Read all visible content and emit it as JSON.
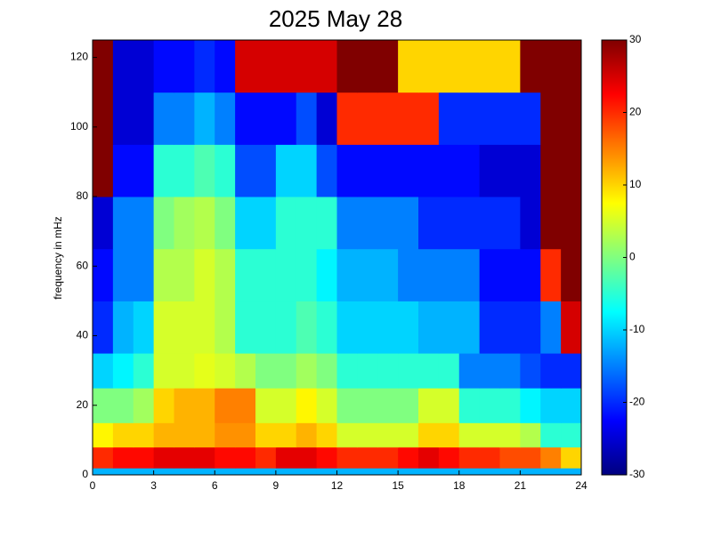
{
  "chart_data": {
    "type": "heatmap",
    "title": "2025 May 28",
    "ylabel": "frequency in mHz",
    "colormap": "jet",
    "x_edges": [
      0,
      1,
      2,
      3,
      4,
      5,
      6,
      7,
      8,
      9,
      10,
      11,
      12,
      13,
      14,
      15,
      16,
      17,
      18,
      19,
      20,
      21,
      22,
      23,
      24
    ],
    "y_edges": [
      0,
      2,
      8,
      15,
      25,
      35,
      50,
      65,
      80,
      95,
      110,
      125
    ],
    "values": [
      [
        -12,
        -12,
        -12,
        -12,
        -12,
        -12,
        -12,
        -12,
        -12,
        -12,
        -12,
        -12,
        -12,
        -12,
        -12,
        -12,
        -12,
        -12,
        -12,
        -12,
        -12,
        -12,
        -12,
        -12
      ],
      [
        20,
        22,
        22,
        24,
        24,
        24,
        22,
        22,
        20,
        24,
        24,
        22,
        20,
        20,
        20,
        22,
        24,
        22,
        20,
        20,
        18,
        18,
        15,
        10
      ],
      [
        8,
        10,
        10,
        12,
        12,
        12,
        14,
        14,
        10,
        10,
        12,
        10,
        5,
        5,
        5,
        5,
        10,
        10,
        5,
        5,
        5,
        3,
        -5,
        -5
      ],
      [
        0,
        0,
        2,
        10,
        12,
        12,
        15,
        15,
        5,
        5,
        8,
        5,
        0,
        0,
        0,
        0,
        5,
        5,
        -5,
        -5,
        -5,
        -8,
        -10,
        -10
      ],
      [
        -10,
        -8,
        -5,
        5,
        5,
        6,
        5,
        3,
        0,
        0,
        2,
        0,
        -5,
        -5,
        -5,
        -5,
        -5,
        -5,
        -15,
        -15,
        -15,
        -18,
        -20,
        -20
      ],
      [
        -20,
        -12,
        -10,
        5,
        5,
        5,
        3,
        -5,
        -5,
        -5,
        -3,
        -5,
        -10,
        -10,
        -10,
        -10,
        -12,
        -12,
        -12,
        -20,
        -20,
        -20,
        -15,
        25
      ],
      [
        -22,
        -15,
        -15,
        3,
        3,
        5,
        3,
        -5,
        -5,
        -5,
        -5,
        -8,
        -12,
        -12,
        -12,
        -15,
        -15,
        -15,
        -15,
        -22,
        -22,
        -22,
        20,
        30
      ],
      [
        -25,
        -15,
        -15,
        0,
        2,
        3,
        0,
        -10,
        -10,
        -5,
        -5,
        -5,
        -15,
        -15,
        -15,
        -15,
        -20,
        -20,
        -20,
        -20,
        -20,
        -25,
        30,
        30
      ],
      [
        30,
        -22,
        -22,
        -5,
        -5,
        -3,
        -5,
        -18,
        -18,
        -10,
        -10,
        -18,
        -22,
        -22,
        -22,
        -22,
        -22,
        -22,
        -22,
        -25,
        -25,
        -25,
        30,
        30
      ],
      [
        30,
        -25,
        -25,
        -15,
        -15,
        -12,
        -15,
        -22,
        -22,
        -22,
        -18,
        -25,
        20,
        20,
        20,
        20,
        20,
        -20,
        -20,
        -20,
        -20,
        -20,
        30,
        30
      ],
      [
        30,
        -25,
        -25,
        -22,
        -22,
        -20,
        -22,
        25,
        25,
        25,
        25,
        25,
        30,
        30,
        30,
        10,
        10,
        10,
        10,
        10,
        10,
        30,
        30,
        30
      ]
    ],
    "xlim": [
      0,
      24
    ],
    "xticks": [
      0,
      3,
      6,
      9,
      12,
      15,
      18,
      21,
      24
    ],
    "ylim": [
      0,
      125
    ],
    "yticks": [
      0,
      20,
      40,
      60,
      80,
      100,
      120
    ],
    "clim": [
      -30,
      30
    ],
    "cticks": [
      -30,
      -20,
      -10,
      0,
      10,
      20,
      30
    ]
  }
}
